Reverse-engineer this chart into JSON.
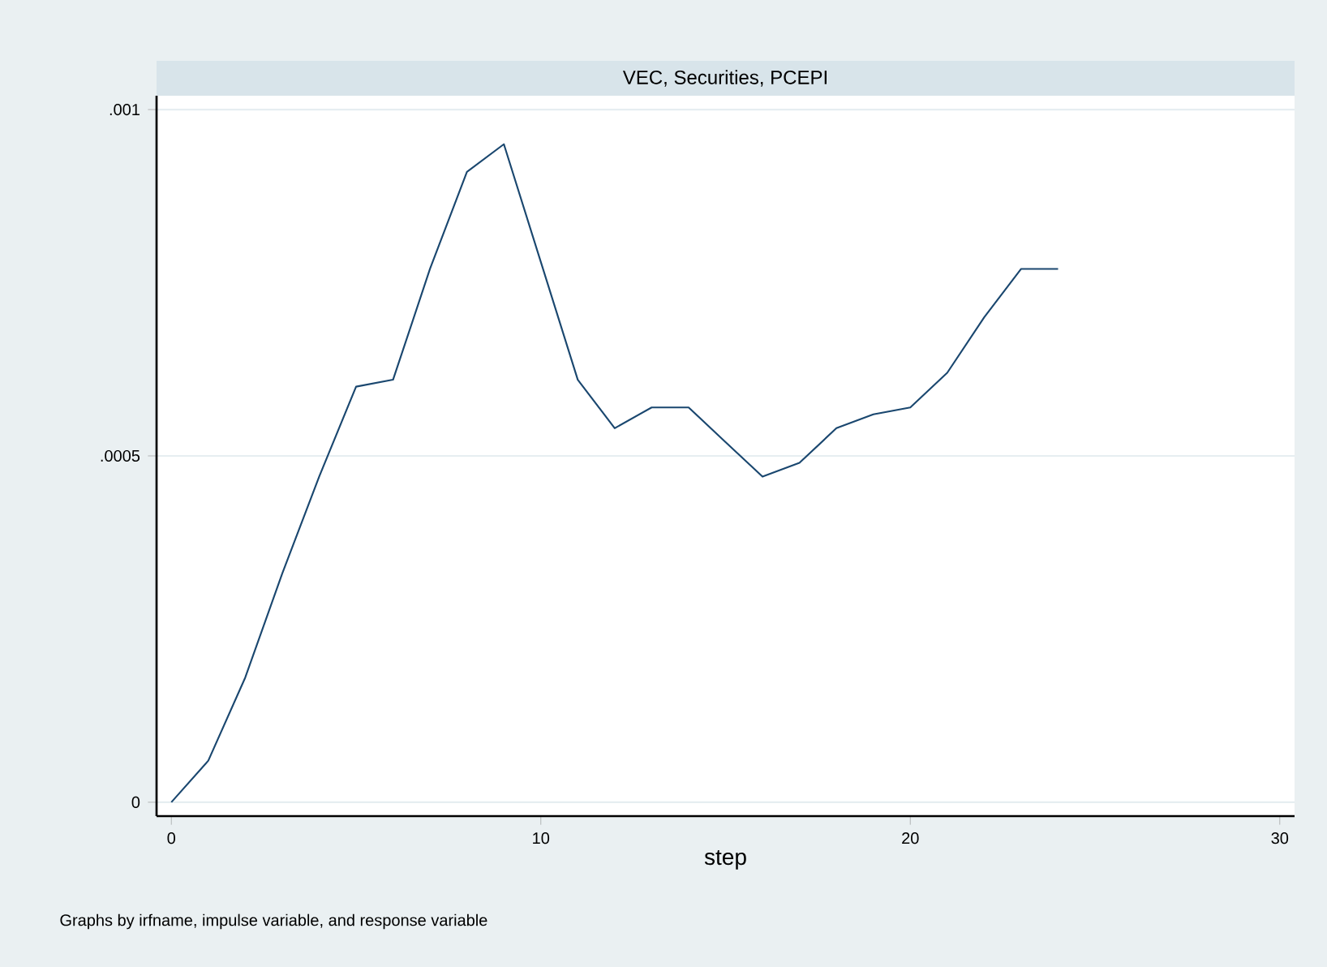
{
  "chart_data": {
    "type": "line",
    "title": "VEC, Securities, PCEPI",
    "xlabel": "step",
    "annotations": [
      "Graphs by irfname, impulse variable, and response variable"
    ],
    "x": [
      0,
      1,
      2,
      3,
      4,
      5,
      6,
      7,
      8,
      9,
      10,
      11,
      12,
      13,
      14,
      15,
      16,
      17,
      18,
      19,
      20,
      21,
      22,
      23,
      24
    ],
    "series": [
      {
        "color": "#1a476f",
        "values": [
          0,
          6e-05,
          0.00018,
          0.00033,
          0.00047,
          0.0006,
          0.00061,
          0.00077,
          0.00091,
          0.00095,
          0.00078,
          0.00061,
          0.00054,
          0.00057,
          0.00057,
          0.00052,
          0.00047,
          0.00049,
          0.00054,
          0.00056,
          0.00057,
          0.00062,
          0.0007,
          0.00077,
          0.00077
        ]
      }
    ],
    "xlim": [
      -0.4,
      30.4
    ],
    "ylim": [
      -2e-05,
      0.00102
    ],
    "xticks": [
      0,
      10,
      20,
      30
    ],
    "yticks": [
      {
        "value": 0,
        "label": "0"
      },
      {
        "value": 0.0005,
        "label": ".0005"
      },
      {
        "value": 0.001,
        "label": ".001"
      }
    ],
    "grid": "y",
    "marker": "none",
    "line_style": "solid"
  }
}
